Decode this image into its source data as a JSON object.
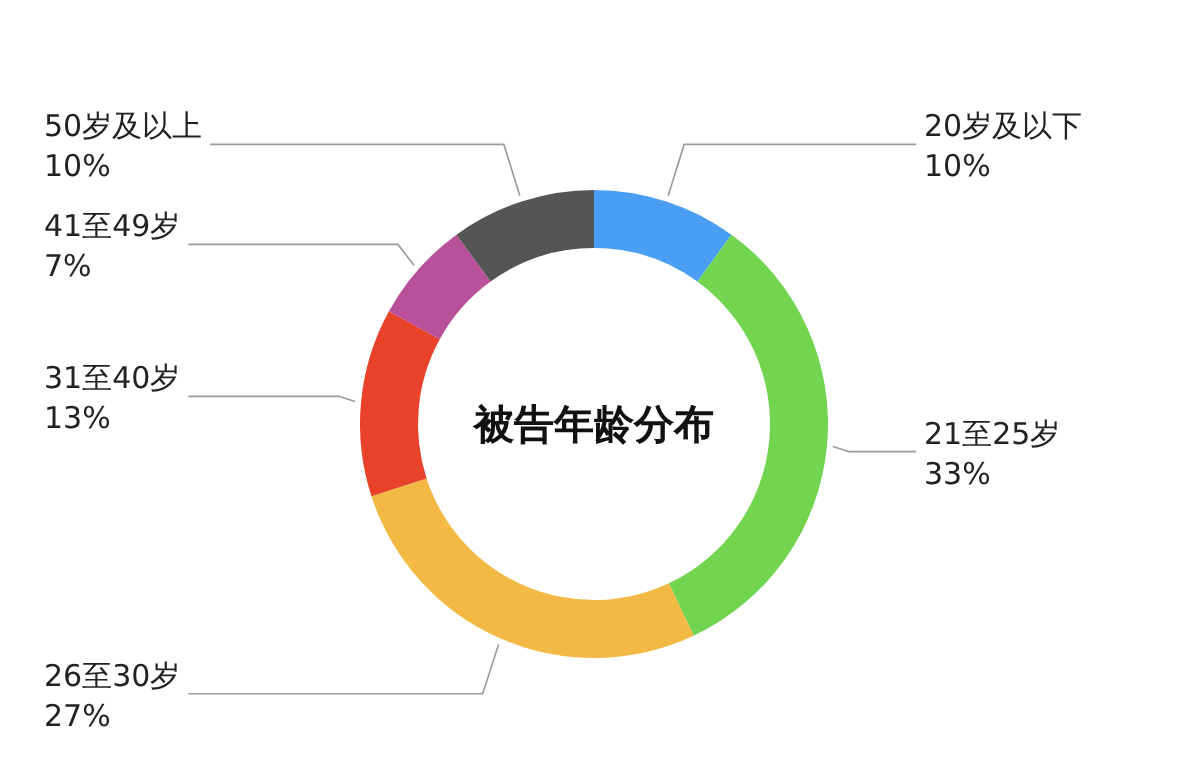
{
  "chart_data": {
    "type": "donut",
    "title": "被告年龄分布",
    "categories": [
      "20岁及以下",
      "21至25岁",
      "26至30岁",
      "31至40岁",
      "41至49岁",
      "50岁及以上"
    ],
    "values": [
      10,
      33,
      27,
      13,
      7,
      10
    ],
    "value_labels": [
      "10%",
      "33%",
      "27%",
      "13%",
      "7%",
      "10%"
    ],
    "colors": [
      "#4a9ff5",
      "#72d44f",
      "#f2b944",
      "#e8422a",
      "#b8509a",
      "#555555"
    ]
  }
}
